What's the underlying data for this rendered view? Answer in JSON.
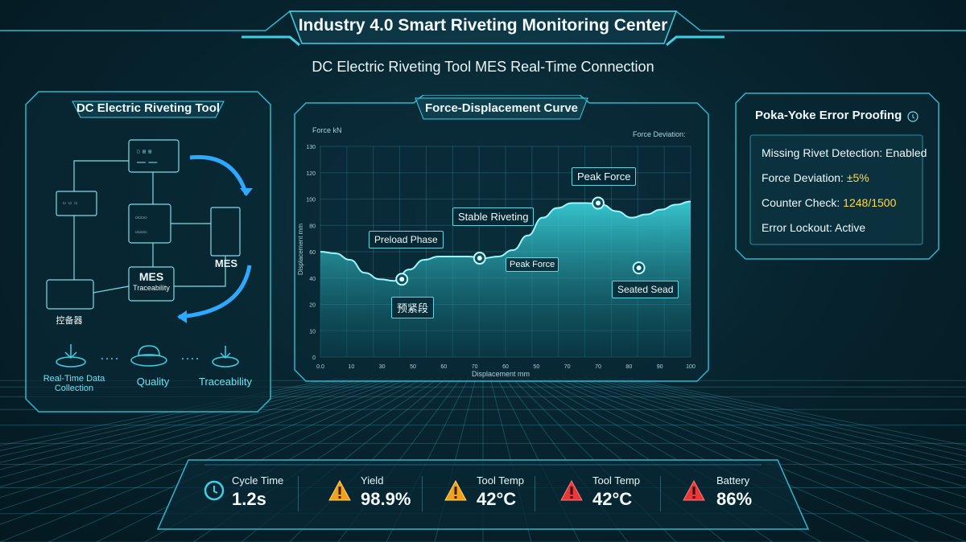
{
  "header": {
    "title": "Industry 4.0 Smart Riveting Monitoring Center",
    "subtitle": "DC Electric Riveting Tool MES Real-Time Connection"
  },
  "left_panel": {
    "title": "DC Electric Riveting Tool",
    "node_mes": "MES",
    "node_mes_sub": "Traceability",
    "node_server": "MES",
    "node_bottom_left": "控备器",
    "bottom_items": [
      {
        "label": "Real-Time Data\nCollection",
        "icon": "download-icon"
      },
      {
        "label": "Quality",
        "icon": "cloud-icon"
      },
      {
        "label": "Traceability",
        "icon": "download-icon"
      }
    ]
  },
  "chart_panel": {
    "title": "Force-Displacement Curve",
    "top_left": "Force kN",
    "top_right": "Force Deviation:",
    "annotations": {
      "preload": "Preload Phase",
      "stable": "Stable Riveting",
      "peak_top": "Peak Force",
      "peak_mid": "Peak Force",
      "seated": "Seated Sead",
      "cn": "预紧段"
    }
  },
  "chart_data": {
    "type": "area",
    "xlabel": "Displacement mm",
    "ylabel": "Displacement mm",
    "ylim": [
      0,
      130
    ],
    "xlim": [
      0,
      100
    ],
    "y_ticks": [
      "0",
      "10",
      "20",
      "40",
      "60",
      "80",
      "100",
      "120",
      "130"
    ],
    "x_ticks": [
      "0.0",
      "10",
      "30",
      "50",
      "60",
      "70",
      "60",
      "50",
      "70",
      "70",
      "80",
      "90",
      "100"
    ],
    "x": [
      0,
      4,
      8,
      12,
      16,
      20,
      24,
      28,
      32,
      36,
      40,
      44,
      48,
      52,
      56,
      60,
      64,
      68,
      72,
      76,
      80,
      84,
      88,
      92,
      96,
      100
    ],
    "y": [
      65,
      64,
      60,
      52,
      48,
      47,
      54,
      60,
      62,
      62,
      62,
      61,
      62,
      66,
      75,
      86,
      92,
      95,
      95,
      94,
      90,
      86,
      88,
      91,
      94,
      96
    ],
    "grid": true,
    "markers": [
      {
        "x": 22,
        "y": 48
      },
      {
        "x": 43,
        "y": 61
      },
      {
        "x": 75,
        "y": 95
      },
      {
        "x": 86,
        "y": 55
      }
    ]
  },
  "right_panel": {
    "title": "Poka-Yoke Error Proofing",
    "rules": [
      {
        "label": "Missing Rivet Detection: Enabled",
        "value": ""
      },
      {
        "label": "Force Deviation: ",
        "value": "±5%"
      },
      {
        "label": "Counter Check: ",
        "value": "1248/1500"
      },
      {
        "label": "Error Lockout: Active",
        "value": ""
      }
    ]
  },
  "metrics": [
    {
      "label": "Cycle Time",
      "value": "1.2s",
      "icon": "clock-icon",
      "color": "#3fd0e6"
    },
    {
      "label": "Yield",
      "value": "98.9%",
      "icon": "warning-icon",
      "color": "#f2a21a"
    },
    {
      "label": "Tool Temp",
      "value": "42°C",
      "icon": "warning-icon",
      "color": "#f2a21a"
    },
    {
      "label": "Tool Temp",
      "value": "42°C",
      "icon": "warning-icon",
      "color": "#e8383a"
    },
    {
      "label": "Battery",
      "value": "86%",
      "icon": "warning-icon",
      "color": "#e8383a"
    }
  ],
  "colors": {
    "accent": "#3fd0e6",
    "panel_border": "#2fb6cc",
    "highlight": "#ffd84a"
  }
}
